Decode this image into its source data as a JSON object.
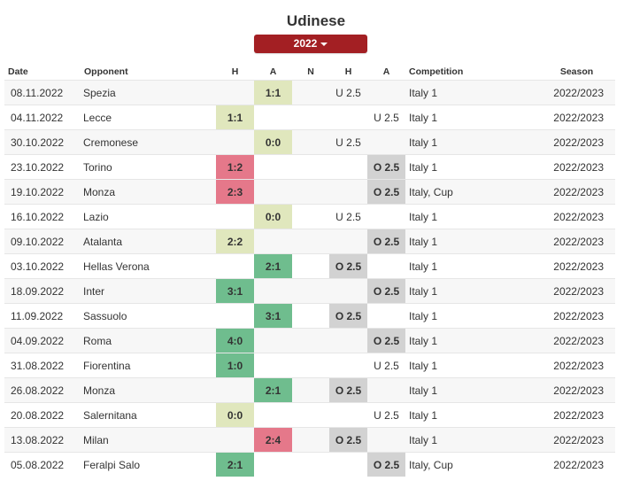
{
  "header": {
    "team": "Udinese",
    "season_select": "2022"
  },
  "colors": {
    "draw": "#e0e7bd",
    "win": "#6fbd8e",
    "loss": "#e5788a",
    "over": "#d2d2d2",
    "button": "#a31f23"
  },
  "columns": {
    "date": "Date",
    "opponent": "Opponent",
    "home": "H",
    "away": "A",
    "neutral": "N",
    "ou_home": "H",
    "ou_away": "A",
    "competition": "Competition",
    "season": "Season"
  },
  "matches": [
    {
      "date": "08.11.2022",
      "opponent": "Spezia",
      "score": "1:1",
      "venue": "away",
      "result": "draw",
      "ou": "U 2.5",
      "comp": "Italy 1",
      "season": "2022/2023"
    },
    {
      "date": "04.11.2022",
      "opponent": "Lecce",
      "score": "1:1",
      "venue": "home",
      "result": "draw",
      "ou": "U 2.5",
      "comp": "Italy 1",
      "season": "2022/2023"
    },
    {
      "date": "30.10.2022",
      "opponent": "Cremonese",
      "score": "0:0",
      "venue": "away",
      "result": "draw",
      "ou": "U 2.5",
      "comp": "Italy 1",
      "season": "2022/2023"
    },
    {
      "date": "23.10.2022",
      "opponent": "Torino",
      "score": "1:2",
      "venue": "home",
      "result": "loss",
      "ou": "O 2.5",
      "comp": "Italy 1",
      "season": "2022/2023"
    },
    {
      "date": "19.10.2022",
      "opponent": "Monza",
      "score": "2:3",
      "venue": "home",
      "result": "loss",
      "ou": "O 2.5",
      "comp": "Italy, Cup",
      "season": "2022/2023"
    },
    {
      "date": "16.10.2022",
      "opponent": "Lazio",
      "score": "0:0",
      "venue": "away",
      "result": "draw",
      "ou": "U 2.5",
      "comp": "Italy 1",
      "season": "2022/2023"
    },
    {
      "date": "09.10.2022",
      "opponent": "Atalanta",
      "score": "2:2",
      "venue": "home",
      "result": "draw",
      "ou": "O 2.5",
      "comp": "Italy 1",
      "season": "2022/2023"
    },
    {
      "date": "03.10.2022",
      "opponent": "Hellas Verona",
      "score": "2:1",
      "venue": "away",
      "result": "win",
      "ou": "O 2.5",
      "comp": "Italy 1",
      "season": "2022/2023"
    },
    {
      "date": "18.09.2022",
      "opponent": "Inter",
      "score": "3:1",
      "venue": "home",
      "result": "win",
      "ou": "O 2.5",
      "comp": "Italy 1",
      "season": "2022/2023"
    },
    {
      "date": "11.09.2022",
      "opponent": "Sassuolo",
      "score": "3:1",
      "venue": "away",
      "result": "win",
      "ou": "O 2.5",
      "comp": "Italy 1",
      "season": "2022/2023"
    },
    {
      "date": "04.09.2022",
      "opponent": "Roma",
      "score": "4:0",
      "venue": "home",
      "result": "win",
      "ou": "O 2.5",
      "comp": "Italy 1",
      "season": "2022/2023"
    },
    {
      "date": "31.08.2022",
      "opponent": "Fiorentina",
      "score": "1:0",
      "venue": "home",
      "result": "win",
      "ou": "U 2.5",
      "comp": "Italy 1",
      "season": "2022/2023"
    },
    {
      "date": "26.08.2022",
      "opponent": "Monza",
      "score": "2:1",
      "venue": "away",
      "result": "win",
      "ou": "O 2.5",
      "comp": "Italy 1",
      "season": "2022/2023"
    },
    {
      "date": "20.08.2022",
      "opponent": "Salernitana",
      "score": "0:0",
      "venue": "home",
      "result": "draw",
      "ou": "U 2.5",
      "comp": "Italy 1",
      "season": "2022/2023"
    },
    {
      "date": "13.08.2022",
      "opponent": "Milan",
      "score": "2:4",
      "venue": "away",
      "result": "loss",
      "ou": "O 2.5",
      "comp": "Italy 1",
      "season": "2022/2023"
    },
    {
      "date": "05.08.2022",
      "opponent": "Feralpi Salo",
      "score": "2:1",
      "venue": "home",
      "result": "win",
      "ou": "O 2.5",
      "comp": "Italy, Cup",
      "season": "2022/2023"
    }
  ]
}
